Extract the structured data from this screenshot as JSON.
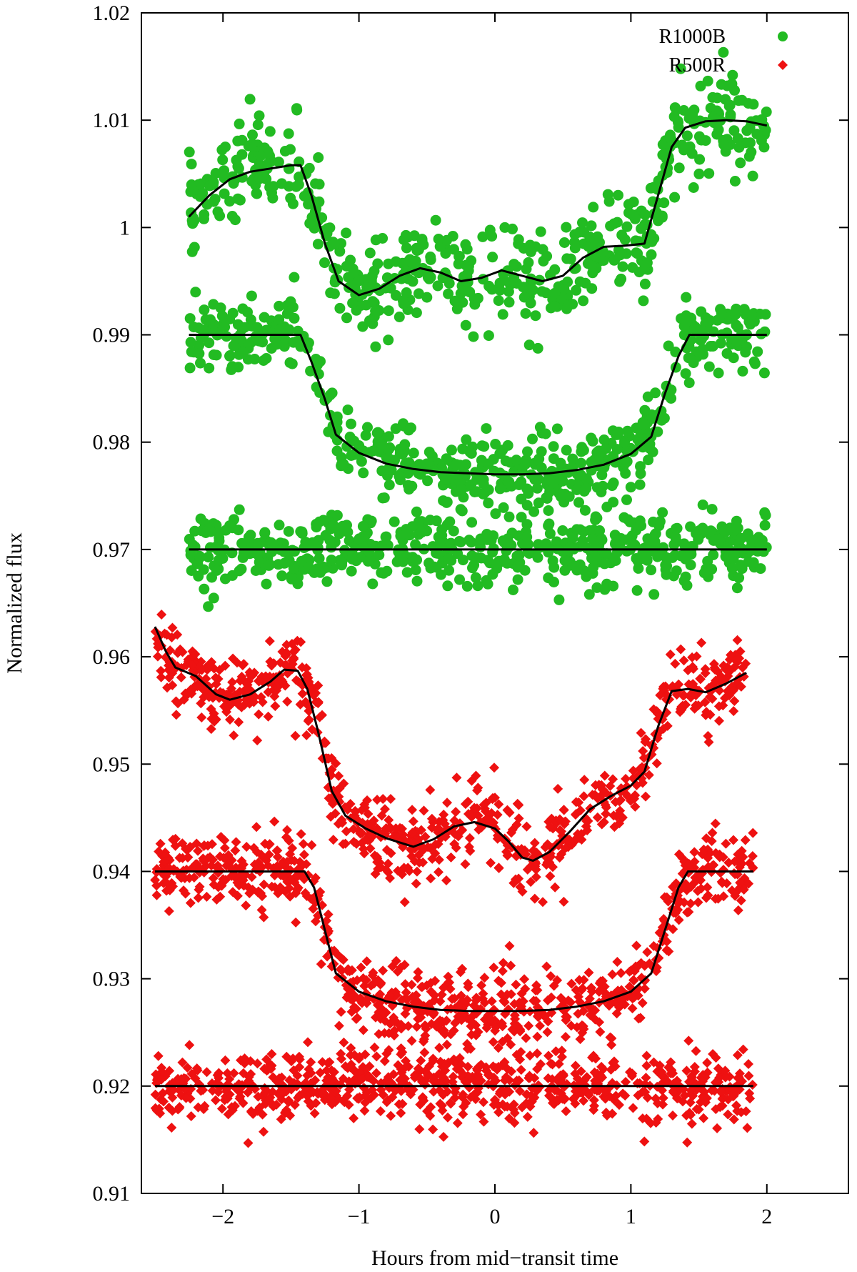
{
  "chart_data": {
    "type": "scatter",
    "xlabel": "Hours from mid−transit time",
    "ylabel": "Normalized flux",
    "xlim": [
      -2.6,
      2.6
    ],
    "ylim": [
      0.91,
      1.02
    ],
    "x_ticks": [
      -2,
      -1,
      0,
      1,
      2
    ],
    "x_tick_labels": [
      "−2",
      "−1",
      "0",
      "1",
      "2"
    ],
    "y_ticks": [
      0.91,
      0.92,
      0.93,
      0.94,
      0.95,
      0.96,
      0.97,
      0.98,
      0.99,
      1.0,
      1.01,
      1.02
    ],
    "y_tick_labels": [
      "0.91",
      "0.92",
      "0.93",
      "0.94",
      "0.95",
      "0.96",
      "0.97",
      "0.98",
      "0.99",
      "1",
      "1.01",
      "1.02"
    ],
    "grid": false,
    "legend_position": "top-right",
    "legend": [
      {
        "label": "R1000B",
        "marker": "circle",
        "color": "#22bb22"
      },
      {
        "label": "R500R",
        "marker": "diamond",
        "color": "#ee1111"
      }
    ],
    "series": [
      {
        "name": "R1000B",
        "role": "raw light curve",
        "marker": "circle",
        "color": "#22bb22",
        "scatter": 0.0022,
        "points": [
          [
            -2.25,
            1.001
          ],
          [
            -2.1,
            1.003
          ],
          [
            -1.95,
            1.0045
          ],
          [
            -1.8,
            1.0052
          ],
          [
            -1.65,
            1.0055
          ],
          [
            -1.5,
            1.0058
          ],
          [
            -1.43,
            1.0058
          ],
          [
            -1.35,
            1.003
          ],
          [
            -1.25,
            0.9985
          ],
          [
            -1.15,
            0.995
          ],
          [
            -1.0,
            0.9937
          ],
          [
            -0.85,
            0.9943
          ],
          [
            -0.7,
            0.9955
          ],
          [
            -0.55,
            0.9962
          ],
          [
            -0.4,
            0.9958
          ],
          [
            -0.25,
            0.995
          ],
          [
            -0.1,
            0.9953
          ],
          [
            0.05,
            0.996
          ],
          [
            0.2,
            0.9955
          ],
          [
            0.35,
            0.995
          ],
          [
            0.5,
            0.9955
          ],
          [
            0.65,
            0.9972
          ],
          [
            0.8,
            0.9982
          ],
          [
            0.95,
            0.9983
          ],
          [
            1.1,
            0.9985
          ],
          [
            1.2,
            1.003
          ],
          [
            1.3,
            1.0075
          ],
          [
            1.4,
            1.0093
          ],
          [
            1.55,
            1.0099
          ],
          [
            1.7,
            1.01
          ],
          [
            1.85,
            1.0099
          ],
          [
            2.0,
            1.0095
          ]
        ]
      },
      {
        "name": "R1000B",
        "role": "detrended light curve",
        "marker": "circle",
        "color": "#22bb22",
        "scatter": 0.0017,
        "points": [
          [
            -2.25,
            0.99
          ],
          [
            -2.0,
            0.99
          ],
          [
            -1.75,
            0.99
          ],
          [
            -1.55,
            0.99
          ],
          [
            -1.43,
            0.99
          ],
          [
            -1.35,
            0.9875
          ],
          [
            -1.25,
            0.984
          ],
          [
            -1.17,
            0.9807
          ],
          [
            -1.0,
            0.979
          ],
          [
            -0.8,
            0.978
          ],
          [
            -0.6,
            0.9775
          ],
          [
            -0.4,
            0.9772
          ],
          [
            -0.2,
            0.9771
          ],
          [
            0.0,
            0.977
          ],
          [
            0.2,
            0.977
          ],
          [
            0.4,
            0.9771
          ],
          [
            0.6,
            0.9774
          ],
          [
            0.8,
            0.9779
          ],
          [
            1.0,
            0.9789
          ],
          [
            1.15,
            0.9805
          ],
          [
            1.25,
            0.9845
          ],
          [
            1.35,
            0.988
          ],
          [
            1.43,
            0.99
          ],
          [
            1.6,
            0.99
          ],
          [
            1.8,
            0.99
          ],
          [
            2.0,
            0.99
          ]
        ]
      },
      {
        "name": "R1000B",
        "role": "residuals",
        "marker": "circle",
        "color": "#22bb22",
        "scatter": 0.0016,
        "points": [
          [
            -2.25,
            0.97
          ],
          [
            -1.5,
            0.97
          ],
          [
            -0.75,
            0.97
          ],
          [
            0.0,
            0.97
          ],
          [
            0.75,
            0.97
          ],
          [
            1.5,
            0.97
          ],
          [
            2.0,
            0.97
          ]
        ]
      },
      {
        "name": "R500R",
        "role": "raw light curve",
        "marker": "diamond",
        "color": "#ee1111",
        "scatter": 0.0018,
        "points": [
          [
            -2.5,
            0.9628
          ],
          [
            -2.42,
            0.9605
          ],
          [
            -2.35,
            0.959
          ],
          [
            -2.2,
            0.9582
          ],
          [
            -2.05,
            0.9565
          ],
          [
            -1.95,
            0.956
          ],
          [
            -1.8,
            0.9565
          ],
          [
            -1.65,
            0.9577
          ],
          [
            -1.55,
            0.9588
          ],
          [
            -1.45,
            0.9587
          ],
          [
            -1.38,
            0.957
          ],
          [
            -1.3,
            0.953
          ],
          [
            -1.2,
            0.9475
          ],
          [
            -1.1,
            0.9452
          ],
          [
            -0.95,
            0.944
          ],
          [
            -0.8,
            0.9431
          ],
          [
            -0.6,
            0.9423
          ],
          [
            -0.45,
            0.943
          ],
          [
            -0.3,
            0.9442
          ],
          [
            -0.15,
            0.9446
          ],
          [
            0.0,
            0.944
          ],
          [
            0.1,
            0.9428
          ],
          [
            0.2,
            0.9413
          ],
          [
            0.28,
            0.941
          ],
          [
            0.4,
            0.9418
          ],
          [
            0.55,
            0.9437
          ],
          [
            0.7,
            0.9458
          ],
          [
            0.85,
            0.947
          ],
          [
            1.0,
            0.948
          ],
          [
            1.1,
            0.9493
          ],
          [
            1.2,
            0.9535
          ],
          [
            1.3,
            0.9568
          ],
          [
            1.42,
            0.957
          ],
          [
            1.55,
            0.9567
          ],
          [
            1.7,
            0.9575
          ],
          [
            1.85,
            0.9585
          ]
        ]
      },
      {
        "name": "R500R",
        "role": "detrended light curve",
        "marker": "diamond",
        "color": "#ee1111",
        "scatter": 0.0017,
        "points": [
          [
            -2.5,
            0.94
          ],
          [
            -2.2,
            0.94
          ],
          [
            -1.9,
            0.94
          ],
          [
            -1.6,
            0.94
          ],
          [
            -1.4,
            0.94
          ],
          [
            -1.33,
            0.9385
          ],
          [
            -1.25,
            0.9345
          ],
          [
            -1.17,
            0.9305
          ],
          [
            -1.0,
            0.9288
          ],
          [
            -0.8,
            0.9279
          ],
          [
            -0.6,
            0.9274
          ],
          [
            -0.4,
            0.9271
          ],
          [
            -0.2,
            0.927
          ],
          [
            0.0,
            0.927
          ],
          [
            0.2,
            0.927
          ],
          [
            0.4,
            0.9271
          ],
          [
            0.6,
            0.9274
          ],
          [
            0.8,
            0.9279
          ],
          [
            1.0,
            0.9288
          ],
          [
            1.15,
            0.9305
          ],
          [
            1.25,
            0.9345
          ],
          [
            1.35,
            0.9385
          ],
          [
            1.42,
            0.94
          ],
          [
            1.6,
            0.94
          ],
          [
            1.9,
            0.94
          ]
        ]
      },
      {
        "name": "R500R",
        "role": "residuals",
        "marker": "diamond",
        "color": "#ee1111",
        "scatter": 0.0017,
        "points": [
          [
            -2.5,
            0.92
          ],
          [
            -1.5,
            0.92
          ],
          [
            -0.5,
            0.92
          ],
          [
            0.5,
            0.92
          ],
          [
            1.5,
            0.92
          ],
          [
            1.9,
            0.92
          ]
        ]
      }
    ]
  }
}
